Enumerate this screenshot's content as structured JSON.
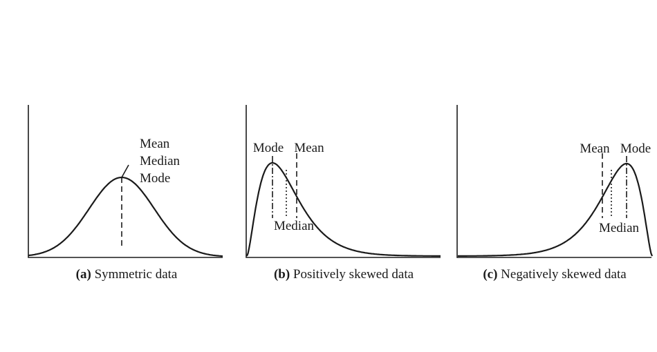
{
  "panels": [
    {
      "id": "a",
      "labels": {
        "mean": "Mean",
        "median": "Median",
        "mode": "Mode"
      },
      "caption": {
        "letter": "(a)",
        "text": "Symmetric data"
      }
    },
    {
      "id": "b",
      "labels": {
        "mode": "Mode",
        "mean": "Mean",
        "median": "Median"
      },
      "caption": {
        "letter": "(b)",
        "text": "Positively skewed data"
      }
    },
    {
      "id": "c",
      "labels": {
        "mean": "Mean",
        "mode": "Mode",
        "median": "Median"
      },
      "caption": {
        "letter": "(c)",
        "text": "Negatively skewed data"
      }
    }
  ]
}
